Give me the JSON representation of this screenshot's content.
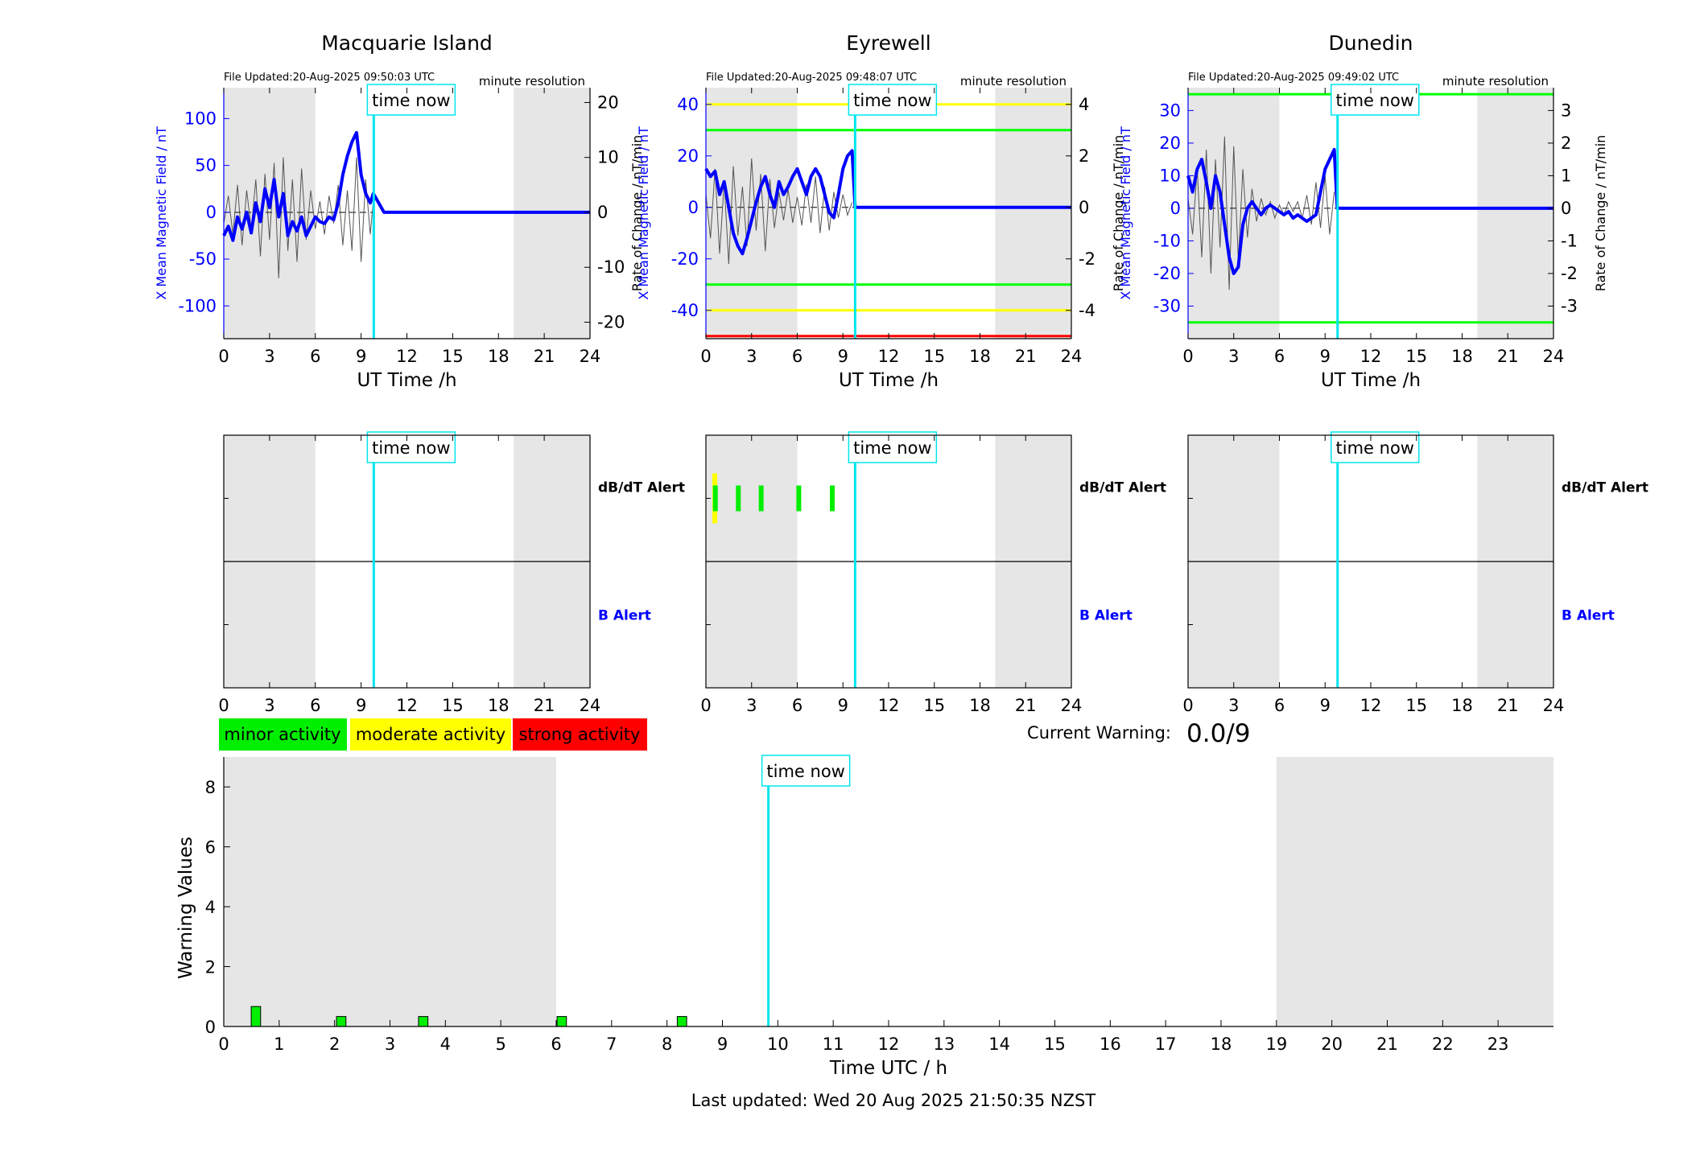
{
  "chart_data": [
    {
      "type": "line",
      "title": "Macquarie Island",
      "file_updated": "File Updated:20-Aug-2025 09:50:03 UTC",
      "resolution": "minute resolution",
      "xlabel": "UT Time /h",
      "ylabel_left": "X Mean Magnetic Field / nT",
      "ylabel_right": "Rate of Change / nT/min",
      "xlim": [
        0,
        24
      ],
      "ylim_left": [
        -135,
        133
      ],
      "ylim_right": [
        -23,
        22.7
      ],
      "x_ticks": [
        0,
        3,
        6,
        9,
        12,
        15,
        18,
        21,
        24
      ],
      "y_ticks_left": [
        -100,
        -50,
        0,
        50,
        100
      ],
      "y_ticks_right": [
        -20,
        -10,
        0,
        10,
        20
      ],
      "night_shading": [
        [
          0,
          6
        ],
        [
          19,
          24
        ]
      ],
      "time_now": 9.83,
      "time_now_label": "time now",
      "threshold_lines": [],
      "series": [
        {
          "role": "rate_of_change",
          "color": "#555555",
          "x": [
            0.0,
            0.3,
            0.6,
            0.9,
            1.2,
            1.5,
            1.8,
            2.1,
            2.4,
            2.7,
            3.0,
            3.3,
            3.6,
            3.9,
            4.2,
            4.5,
            4.8,
            5.1,
            5.4,
            5.7,
            6.0,
            6.3,
            6.6,
            6.9,
            7.2,
            7.5,
            7.8,
            8.1,
            8.4,
            8.7,
            9.0,
            9.3,
            9.6,
            9.8
          ],
          "y": [
            -2,
            3,
            -4,
            5,
            -6,
            4,
            -3,
            6,
            -8,
            7,
            -5,
            9,
            -12,
            10,
            -7,
            6,
            -9,
            8,
            -5,
            4,
            -3,
            2,
            -4,
            3,
            -2,
            5,
            -6,
            4,
            -7,
            10,
            -9,
            6,
            -4,
            2
          ]
        },
        {
          "role": "x_field",
          "color": "#0000ff",
          "x": [
            0.0,
            0.3,
            0.6,
            0.9,
            1.2,
            1.5,
            1.8,
            2.1,
            2.4,
            2.7,
            3.0,
            3.3,
            3.6,
            3.9,
            4.2,
            4.5,
            4.8,
            5.1,
            5.4,
            5.7,
            6.0,
            6.3,
            6.6,
            6.9,
            7.2,
            7.5,
            7.8,
            8.1,
            8.4,
            8.7,
            9.0,
            9.3,
            9.6,
            9.8,
            10.5,
            24.0
          ],
          "y": [
            -25,
            -15,
            -30,
            -5,
            -18,
            0,
            -22,
            10,
            -10,
            25,
            5,
            35,
            -5,
            20,
            -25,
            -10,
            -20,
            -5,
            -25,
            -15,
            -5,
            -10,
            -12,
            -5,
            -8,
            10,
            40,
            60,
            75,
            85,
            40,
            20,
            10,
            20,
            0,
            0
          ]
        }
      ]
    },
    {
      "type": "line",
      "title": "Eyrewell",
      "file_updated": "File Updated:20-Aug-2025 09:48:07 UTC",
      "resolution": "minute resolution",
      "xlabel": "UT Time /h",
      "ylabel_left": "X Mean Magnetic Field / nT",
      "ylabel_right": "Rate of Change / nT/min",
      "xlim": [
        0,
        24
      ],
      "ylim_left": [
        -51,
        46.5
      ],
      "ylim_right": [
        -5.1,
        4.65
      ],
      "x_ticks": [
        0,
        3,
        6,
        9,
        12,
        15,
        18,
        21,
        24
      ],
      "y_ticks_left": [
        -40,
        -20,
        0,
        20,
        40
      ],
      "y_ticks_right": [
        -4,
        -2,
        0,
        2,
        4
      ],
      "night_shading": [
        [
          0,
          6
        ],
        [
          19,
          24
        ]
      ],
      "time_now": 9.8,
      "time_now_label": "time now",
      "threshold_lines": [
        {
          "value": 40,
          "color": "#ffff00"
        },
        {
          "value": 30,
          "color": "#00ff00"
        },
        {
          "value": -30,
          "color": "#00ff00"
        },
        {
          "value": -40,
          "color": "#ffff00"
        },
        {
          "value": -50,
          "color": "#ff0000"
        }
      ],
      "series": [
        {
          "role": "rate_of_change",
          "color": "#555555",
          "x": [
            0.0,
            0.3,
            0.6,
            0.9,
            1.2,
            1.5,
            1.8,
            2.1,
            2.4,
            2.7,
            3.0,
            3.3,
            3.6,
            3.9,
            4.2,
            4.5,
            4.8,
            5.1,
            5.4,
            5.7,
            6.0,
            6.3,
            6.6,
            6.9,
            7.2,
            7.5,
            7.8,
            8.1,
            8.4,
            8.7,
            9.0,
            9.3,
            9.6
          ],
          "y": [
            0.5,
            -1.2,
            1.5,
            -1.8,
            1.0,
            -2.2,
            1.6,
            -1.1,
            0.8,
            -1.5,
            1.9,
            -0.9,
            1.3,
            -1.7,
            1.1,
            -0.8,
            0.6,
            -0.5,
            0.7,
            -0.6,
            0.4,
            -0.7,
            0.9,
            -0.6,
            1.2,
            -1.0,
            0.8,
            -0.9,
            0.6,
            -0.4,
            0.5,
            -0.3,
            0.2
          ]
        },
        {
          "role": "x_field",
          "color": "#0000ff",
          "x": [
            0.0,
            0.3,
            0.6,
            0.9,
            1.2,
            1.5,
            1.8,
            2.1,
            2.4,
            2.7,
            3.0,
            3.3,
            3.6,
            3.9,
            4.2,
            4.5,
            4.8,
            5.1,
            5.4,
            5.7,
            6.0,
            6.3,
            6.6,
            6.9,
            7.2,
            7.5,
            7.8,
            8.1,
            8.4,
            8.7,
            9.0,
            9.3,
            9.6,
            9.8,
            10.5,
            24.0
          ],
          "y": [
            15,
            12,
            14,
            5,
            10,
            0,
            -10,
            -15,
            -18,
            -12,
            -5,
            2,
            8,
            12,
            5,
            0,
            10,
            5,
            8,
            12,
            15,
            10,
            5,
            12,
            15,
            12,
            5,
            -2,
            -4,
            5,
            15,
            20,
            22,
            0,
            0,
            0
          ]
        }
      ]
    },
    {
      "type": "line",
      "title": "Dunedin",
      "file_updated": "File Updated:20-Aug-2025 09:49:02 UTC",
      "resolution": "minute resolution",
      "xlabel": "UT Time /h",
      "ylabel_left": "X Mean Magnetic Field / nT",
      "ylabel_right": "Rate of Change / nT/min",
      "xlim": [
        0,
        24
      ],
      "ylim_left": [
        -40,
        37
      ],
      "ylim_right": [
        -4.0,
        3.7
      ],
      "x_ticks": [
        0,
        3,
        6,
        9,
        12,
        15,
        18,
        21,
        24
      ],
      "y_ticks_left": [
        -30,
        -20,
        -10,
        0,
        10,
        20,
        30
      ],
      "y_ticks_right": [
        -3,
        -2,
        -1,
        0,
        1,
        2,
        3
      ],
      "night_shading": [
        [
          0,
          6
        ],
        [
          19,
          24
        ]
      ],
      "time_now": 9.82,
      "time_now_label": "time now",
      "threshold_lines": [
        {
          "value": 35,
          "color": "#00ff00"
        },
        {
          "value": -35,
          "color": "#00ff00"
        }
      ],
      "series": [
        {
          "role": "rate_of_change",
          "color": "#555555",
          "x": [
            0.0,
            0.3,
            0.6,
            0.9,
            1.2,
            1.5,
            1.8,
            2.1,
            2.4,
            2.7,
            3.0,
            3.3,
            3.6,
            3.9,
            4.2,
            4.5,
            4.8,
            5.1,
            5.4,
            5.7,
            6.0,
            6.3,
            6.6,
            6.9,
            7.2,
            7.5,
            7.8,
            8.1,
            8.4,
            8.7,
            9.0,
            9.3,
            9.6
          ],
          "y": [
            0.3,
            -0.8,
            1.2,
            -1.5,
            1.8,
            -2.0,
            1.5,
            -1.2,
            2.2,
            -2.5,
            1.9,
            -1.6,
            1.2,
            -0.9,
            0.6,
            -0.4,
            0.3,
            -0.2,
            0.2,
            -0.3,
            0.1,
            -0.2,
            0.2,
            -0.1,
            0.2,
            -0.3,
            0.4,
            -0.5,
            0.8,
            -0.6,
            1.0,
            -0.8,
            0.5
          ]
        },
        {
          "role": "x_field",
          "color": "#0000ff",
          "x": [
            0.0,
            0.3,
            0.6,
            0.9,
            1.2,
            1.5,
            1.8,
            2.1,
            2.4,
            2.7,
            3.0,
            3.3,
            3.6,
            3.9,
            4.2,
            4.5,
            4.8,
            5.1,
            5.4,
            5.7,
            6.0,
            6.3,
            6.6,
            6.9,
            7.2,
            7.5,
            7.8,
            8.1,
            8.4,
            8.7,
            9.0,
            9.3,
            9.6,
            9.8,
            10.5,
            24.0
          ],
          "y": [
            10,
            5,
            12,
            15,
            8,
            0,
            10,
            5,
            -5,
            -15,
            -20,
            -18,
            -5,
            0,
            2,
            0,
            -2,
            0,
            1,
            0,
            -1,
            -2,
            -1,
            -3,
            -2,
            -3,
            -4,
            -3,
            -2,
            5,
            12,
            15,
            18,
            0,
            0,
            0
          ]
        }
      ]
    },
    {
      "type": "scatter",
      "station": "Macquarie Island",
      "xlim": [
        0,
        24
      ],
      "x_ticks": [
        0,
        3,
        6,
        9,
        12,
        15,
        18,
        21,
        24
      ],
      "row_labels": {
        "dbdt": "dB/dT Alert",
        "b": "B Alert"
      },
      "night_shading": [
        [
          0,
          6
        ],
        [
          19,
          24
        ]
      ],
      "time_now": 9.83,
      "time_now_label": "time now",
      "dbdt_alerts": [],
      "b_alerts": []
    },
    {
      "type": "scatter",
      "station": "Eyrewell",
      "xlim": [
        0,
        24
      ],
      "x_ticks": [
        0,
        3,
        6,
        9,
        12,
        15,
        18,
        21,
        24
      ],
      "row_labels": {
        "dbdt": "dB/dT Alert",
        "b": "B Alert"
      },
      "night_shading": [
        [
          0,
          6
        ],
        [
          19,
          24
        ]
      ],
      "time_now": 9.8,
      "time_now_label": "time now",
      "dbdt_alerts": [
        {
          "x": 0.58,
          "level": "moderate"
        },
        {
          "x": 0.62,
          "level": "minor"
        },
        {
          "x": 2.13,
          "level": "minor"
        },
        {
          "x": 3.63,
          "level": "minor"
        },
        {
          "x": 6.1,
          "level": "minor"
        },
        {
          "x": 8.3,
          "level": "minor"
        }
      ],
      "b_alerts": []
    },
    {
      "type": "scatter",
      "station": "Dunedin",
      "xlim": [
        0,
        24
      ],
      "x_ticks": [
        0,
        3,
        6,
        9,
        12,
        15,
        18,
        21,
        24
      ],
      "row_labels": {
        "dbdt": "dB/dT Alert",
        "b": "B Alert"
      },
      "night_shading": [
        [
          0,
          6
        ],
        [
          19,
          24
        ]
      ],
      "time_now": 9.82,
      "time_now_label": "time now",
      "dbdt_alerts": [],
      "b_alerts": []
    },
    {
      "type": "bar",
      "xlabel": "Time UTC / h",
      "ylabel": "Warning Values",
      "xlim": [
        0,
        24
      ],
      "ylim": [
        0,
        9
      ],
      "x_ticks": [
        0,
        1,
        2,
        3,
        4,
        5,
        6,
        7,
        8,
        9,
        10,
        11,
        12,
        13,
        14,
        15,
        16,
        17,
        18,
        19,
        20,
        21,
        22,
        23
      ],
      "y_ticks": [
        0,
        2,
        4,
        6,
        8
      ],
      "night_shading": [
        [
          0,
          6
        ],
        [
          19,
          24
        ]
      ],
      "time_now": 9.83,
      "time_now_label": "time now",
      "bar_width": 0.17,
      "bars": [
        {
          "x": 0.58,
          "value": 0.667
        },
        {
          "x": 2.12,
          "value": 0.333
        },
        {
          "x": 3.6,
          "value": 0.333
        },
        {
          "x": 6.1,
          "value": 0.333
        },
        {
          "x": 8.27,
          "value": 0.333
        }
      ]
    }
  ],
  "legend": {
    "minor": {
      "label": "minor activity",
      "color": "#00ee00"
    },
    "moderate": {
      "label": "moderate activity",
      "color": "#ffff00"
    },
    "strong": {
      "label": "strong activity",
      "color": "#ff0000"
    }
  },
  "current_warning": {
    "label": "Current Warning:",
    "value": "0.0/9"
  },
  "last_updated": "Last updated: Wed 20 Aug 2025 21:50:35 NZST",
  "colors": {
    "night": "#e6e6e6",
    "time_now": "#00e5ee",
    "field": "#0000ff",
    "rate": "#555555",
    "bar": "#00ee00"
  }
}
